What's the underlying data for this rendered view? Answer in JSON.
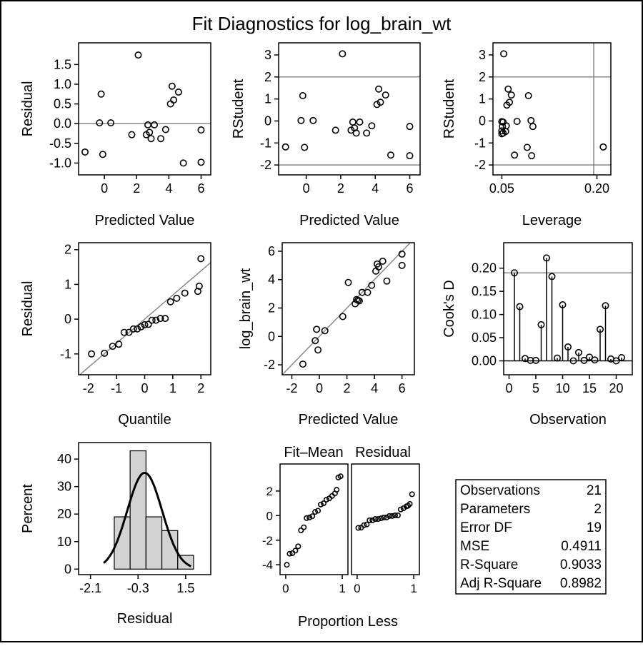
{
  "title": "Fit Diagnostics for log_brain_wt",
  "colors": {
    "axis": "#000000",
    "refline": "#888888",
    "bar_fill": "#d3d3d3",
    "curve": "#000000",
    "frame": "#000000"
  },
  "chart_data": [
    {
      "id": "residual-vs-predicted",
      "type": "scatter",
      "xlabel": "Predicted Value",
      "ylabel": "Residual",
      "xlim": [
        -1.6,
        6.6
      ],
      "ylim": [
        -1.3,
        2.05
      ],
      "xticks": [
        "0",
        "2",
        "4",
        "6"
      ],
      "yticks": [
        "-1.0",
        "-0.5",
        "0.0",
        "0.5",
        "1.0",
        "1.5"
      ],
      "hlines": [
        0
      ],
      "vlines": [],
      "points": [
        [
          -1.2,
          -0.72
        ],
        [
          -0.3,
          0.02
        ],
        [
          -0.2,
          0.75
        ],
        [
          -0.1,
          -0.78
        ],
        [
          0.4,
          0.02
        ],
        [
          1.7,
          -0.28
        ],
        [
          2.1,
          1.74
        ],
        [
          2.6,
          -0.28
        ],
        [
          2.7,
          -0.03
        ],
        [
          2.8,
          -0.22
        ],
        [
          2.9,
          -0.38
        ],
        [
          3.1,
          -0.03
        ],
        [
          3.5,
          -0.38
        ],
        [
          3.8,
          -0.15
        ],
        [
          4.1,
          0.5
        ],
        [
          4.2,
          0.95
        ],
        [
          4.3,
          0.6
        ],
        [
          4.6,
          0.8
        ],
        [
          4.9,
          -1.0
        ],
        [
          6.0,
          -0.98
        ],
        [
          6.0,
          -0.16
        ]
      ]
    },
    {
      "id": "rstudent-vs-predicted",
      "type": "scatter",
      "xlabel": "Predicted Value",
      "ylabel": "RStudent",
      "xlim": [
        -1.6,
        6.6
      ],
      "ylim": [
        -2.45,
        3.55
      ],
      "xticks": [
        "0",
        "2",
        "4",
        "6"
      ],
      "yticks": [
        "-2",
        "-1",
        "0",
        "1",
        "2",
        "3"
      ],
      "hlines": [
        2,
        -2
      ],
      "vlines": [],
      "points": [
        [
          -1.2,
          -1.18
        ],
        [
          -0.3,
          0.02
        ],
        [
          -0.2,
          1.15
        ],
        [
          -0.1,
          -1.2
        ],
        [
          0.4,
          0.02
        ],
        [
          1.7,
          -0.42
        ],
        [
          2.1,
          3.05
        ],
        [
          2.6,
          -0.42
        ],
        [
          2.7,
          -0.05
        ],
        [
          2.8,
          -0.32
        ],
        [
          2.9,
          -0.55
        ],
        [
          3.1,
          -0.05
        ],
        [
          3.5,
          -0.55
        ],
        [
          3.8,
          -0.22
        ],
        [
          4.1,
          0.75
        ],
        [
          4.2,
          1.45
        ],
        [
          4.3,
          0.85
        ],
        [
          4.6,
          1.18
        ],
        [
          4.9,
          -1.55
        ],
        [
          6.0,
          -1.58
        ],
        [
          6.0,
          -0.25
        ]
      ]
    },
    {
      "id": "rstudent-vs-leverage",
      "type": "scatter",
      "xlabel": "Leverage",
      "ylabel": "RStudent",
      "xlim": [
        0.036,
        0.222
      ],
      "ylim": [
        -2.45,
        3.55
      ],
      "xticks": [
        "0.05",
        "0.20"
      ],
      "yticks": [
        "-2",
        "-1",
        "0",
        "1",
        "2",
        "3"
      ],
      "hlines": [
        2,
        -2
      ],
      "vlines": [
        0.195
      ],
      "points": [
        [
          0.05,
          -0.03
        ],
        [
          0.05,
          -0.45
        ],
        [
          0.05,
          -0.58
        ],
        [
          0.051,
          -0.25
        ],
        [
          0.052,
          -0.05
        ],
        [
          0.052,
          -0.55
        ],
        [
          0.053,
          3.05
        ],
        [
          0.056,
          -0.48
        ],
        [
          0.057,
          -0.22
        ],
        [
          0.058,
          0.72
        ],
        [
          0.06,
          1.45
        ],
        [
          0.062,
          0.85
        ],
        [
          0.065,
          1.18
        ],
        [
          0.07,
          -1.55
        ],
        [
          0.074,
          -0.02
        ],
        [
          0.09,
          -1.2
        ],
        [
          0.092,
          1.15
        ],
        [
          0.096,
          0.02
        ],
        [
          0.097,
          -1.58
        ],
        [
          0.099,
          -0.25
        ],
        [
          0.21,
          -1.18
        ]
      ]
    },
    {
      "id": "residual-qq",
      "type": "scatter",
      "xlabel": "Quantile",
      "ylabel": "Residual",
      "xlim": [
        -2.35,
        2.35
      ],
      "ylim": [
        -1.6,
        2.2
      ],
      "xticks": [
        "-2",
        "-1",
        "0",
        "1",
        "2"
      ],
      "yticks": [
        "-1",
        "0",
        "1",
        "2"
      ],
      "hlines": [],
      "vlines": [],
      "refline": [
        [
          -2.35,
          -1.63
        ],
        [
          2.35,
          1.63
        ]
      ],
      "points": [
        [
          -1.89,
          -1.0
        ],
        [
          -1.43,
          -0.98
        ],
        [
          -1.14,
          -0.78
        ],
        [
          -0.92,
          -0.72
        ],
        [
          -0.73,
          -0.38
        ],
        [
          -0.56,
          -0.38
        ],
        [
          -0.4,
          -0.28
        ],
        [
          -0.26,
          -0.28
        ],
        [
          -0.13,
          -0.22
        ],
        [
          0.0,
          -0.16
        ],
        [
          0.13,
          -0.15
        ],
        [
          0.26,
          -0.03
        ],
        [
          0.4,
          -0.03
        ],
        [
          0.56,
          0.02
        ],
        [
          0.73,
          0.02
        ],
        [
          0.92,
          0.5
        ],
        [
          1.14,
          0.6
        ],
        [
          1.43,
          0.75
        ],
        [
          1.89,
          0.8
        ],
        [
          1.94,
          0.95
        ],
        [
          2.0,
          1.74
        ]
      ]
    },
    {
      "id": "observed-vs-predicted",
      "type": "scatter",
      "xlabel": "Predicted Value",
      "ylabel": "log_brain_wt",
      "xlim": [
        -2.7,
        6.9
      ],
      "ylim": [
        -2.7,
        6.6
      ],
      "xticks": [
        "-2",
        "0",
        "2",
        "4",
        "6"
      ],
      "yticks": [
        "-2",
        "0",
        "2",
        "4",
        "6"
      ],
      "hlines": [],
      "vlines": [],
      "refline": [
        [
          -2.7,
          -2.7
        ],
        [
          6.6,
          6.6
        ]
      ],
      "points": [
        [
          -1.2,
          -1.95
        ],
        [
          -0.3,
          -0.3
        ],
        [
          -0.2,
          0.5
        ],
        [
          -0.1,
          -0.95
        ],
        [
          0.4,
          0.4
        ],
        [
          1.7,
          1.4
        ],
        [
          2.1,
          3.8
        ],
        [
          2.6,
          2.3
        ],
        [
          2.7,
          2.6
        ],
        [
          2.8,
          2.55
        ],
        [
          2.9,
          2.5
        ],
        [
          3.1,
          3.1
        ],
        [
          3.5,
          3.1
        ],
        [
          3.8,
          3.6
        ],
        [
          4.1,
          4.6
        ],
        [
          4.2,
          5.1
        ],
        [
          4.3,
          4.9
        ],
        [
          4.6,
          5.3
        ],
        [
          4.9,
          3.9
        ],
        [
          6.0,
          5.0
        ],
        [
          6.0,
          5.8
        ]
      ]
    },
    {
      "id": "cooks-d",
      "type": "bar",
      "xlabel": "Observation",
      "ylabel": "Cook's D",
      "xlim": [
        -1,
        23
      ],
      "ylim": [
        -0.03,
        0.255
      ],
      "xticks": [
        "0",
        "5",
        "10",
        "15",
        "20"
      ],
      "yticks": [
        "0.00",
        "0.05",
        "0.10",
        "0.15",
        "0.20"
      ],
      "hlines": [
        0.19,
        0
      ],
      "vlines": [],
      "observations": [
        1,
        2,
        3,
        4,
        5,
        6,
        7,
        8,
        9,
        10,
        11,
        12,
        13,
        14,
        15,
        16,
        17,
        18,
        19,
        20,
        21
      ],
      "values": [
        0.19,
        0.117,
        0.005,
        0.001,
        0.001,
        0.078,
        0.222,
        0.182,
        0.006,
        0.121,
        0.03,
        0.0,
        0.018,
        0.001,
        0.008,
        0.002,
        0.068,
        0.119,
        0.004,
        0.0,
        0.007
      ]
    },
    {
      "id": "residual-histogram",
      "type": "bar",
      "xlabel": "Residual",
      "ylabel": "Percent",
      "xlim": [
        -2.55,
        2.45
      ],
      "ylim": [
        -2,
        46
      ],
      "xticks": [
        "-2.1",
        "-0.3",
        "1.5"
      ],
      "yticks": [
        "0",
        "10",
        "20",
        "30",
        "40"
      ],
      "bins": [
        [
          -1.2,
          -0.6,
          19
        ],
        [
          -0.6,
          0.0,
          43
        ],
        [
          0.0,
          0.6,
          19
        ],
        [
          0.6,
          1.2,
          14
        ],
        [
          1.2,
          1.8,
          5
        ]
      ],
      "curve": {
        "mean": -0.05,
        "sd": 0.66,
        "peak_percent": 35
      }
    },
    {
      "id": "fit-mean",
      "type": "scatter",
      "xlabel": "",
      "ylabel": "",
      "xlim": [
        -0.1,
        1.1
      ],
      "ylim": [
        -4.8,
        4.2
      ],
      "xticks": [
        "0",
        "1"
      ],
      "yticks": [
        "-4",
        "-2",
        "0",
        "2"
      ],
      "hlines": [],
      "vlines": [],
      "points": [
        [
          0.02,
          -4.0
        ],
        [
          0.07,
          -3.1
        ],
        [
          0.12,
          -3.05
        ],
        [
          0.17,
          -2.85
        ],
        [
          0.22,
          -2.5
        ],
        [
          0.27,
          -1.2
        ],
        [
          0.32,
          -0.95
        ],
        [
          0.37,
          -0.2
        ],
        [
          0.42,
          -0.15
        ],
        [
          0.47,
          -0.05
        ],
        [
          0.52,
          0.3
        ],
        [
          0.57,
          0.4
        ],
        [
          0.62,
          0.9
        ],
        [
          0.67,
          1.0
        ],
        [
          0.72,
          1.3
        ],
        [
          0.77,
          1.4
        ],
        [
          0.82,
          1.6
        ],
        [
          0.87,
          1.8
        ],
        [
          0.9,
          2.1
        ],
        [
          0.93,
          3.1
        ],
        [
          0.97,
          3.2
        ]
      ]
    },
    {
      "id": "residual-spread",
      "type": "scatter",
      "xlabel": "",
      "ylabel": "",
      "xlim": [
        -0.1,
        1.1
      ],
      "ylim": [
        -4.8,
        4.2
      ],
      "xticks": [
        "0",
        "1"
      ],
      "yticks": [],
      "hlines": [],
      "vlines": [],
      "points": [
        [
          0.02,
          -1.0
        ],
        [
          0.07,
          -0.98
        ],
        [
          0.12,
          -0.78
        ],
        [
          0.17,
          -0.72
        ],
        [
          0.22,
          -0.38
        ],
        [
          0.27,
          -0.38
        ],
        [
          0.32,
          -0.28
        ],
        [
          0.37,
          -0.28
        ],
        [
          0.42,
          -0.22
        ],
        [
          0.47,
          -0.16
        ],
        [
          0.52,
          -0.15
        ],
        [
          0.57,
          -0.03
        ],
        [
          0.62,
          -0.03
        ],
        [
          0.67,
          0.02
        ],
        [
          0.72,
          0.02
        ],
        [
          0.77,
          0.5
        ],
        [
          0.82,
          0.6
        ],
        [
          0.87,
          0.75
        ],
        [
          0.9,
          0.8
        ],
        [
          0.93,
          0.95
        ],
        [
          0.97,
          1.74
        ]
      ]
    }
  ],
  "spread": {
    "title_left": "Fit–Mean",
    "title_right": "Residual",
    "xlabel": "Proportion Less"
  },
  "stats": [
    {
      "label": "Observations",
      "value": "21"
    },
    {
      "label": "Parameters",
      "value": "2"
    },
    {
      "label": "Error DF",
      "value": "19"
    },
    {
      "label": "MSE",
      "value": "0.4911"
    },
    {
      "label": "R-Square",
      "value": "0.9033"
    },
    {
      "label": "Adj R-Square",
      "value": "0.8982"
    }
  ]
}
